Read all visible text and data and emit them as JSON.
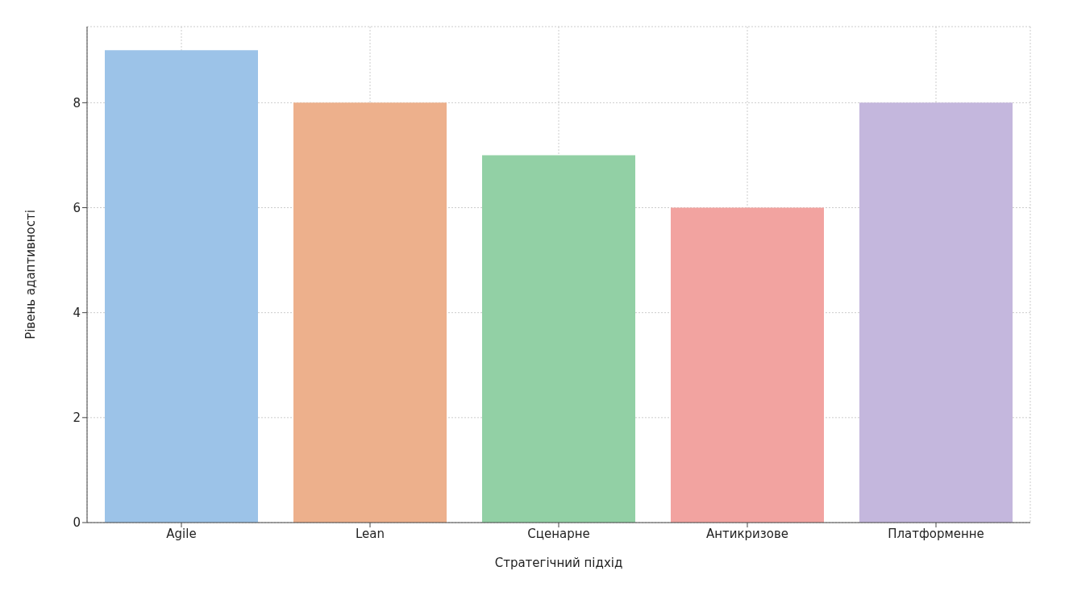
{
  "chart_data": {
    "type": "bar",
    "xlabel": "Стратегічний підхід",
    "ylabel": "Рівень адаптивності",
    "categories": [
      "Agile",
      "Lean",
      "Сценарне",
      "Антикризове",
      "Платформенне"
    ],
    "values": [
      9,
      8,
      7,
      6,
      8
    ],
    "colors": [
      "#9cc3e8",
      "#edb08c",
      "#92d0a5",
      "#f2a3a0",
      "#c4b7dd"
    ],
    "ylim": [
      0,
      9.45
    ],
    "yticks": [
      0,
      2,
      4,
      6,
      8
    ],
    "grid": true
  }
}
